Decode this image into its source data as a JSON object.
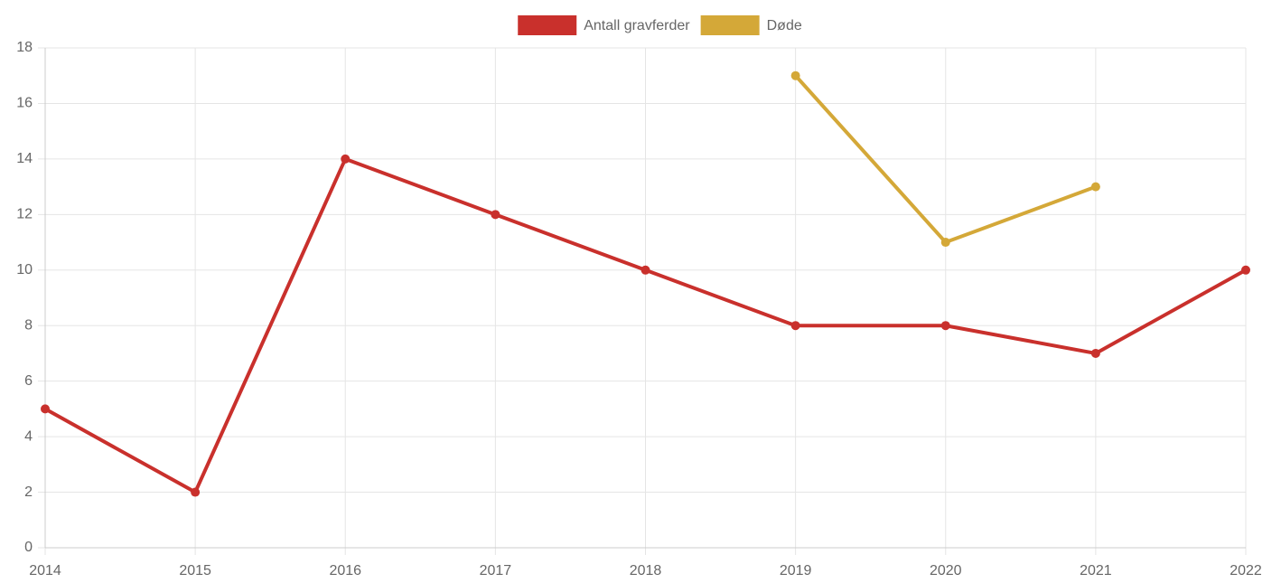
{
  "chart_data": {
    "type": "line",
    "categories": [
      "2014",
      "2015",
      "2016",
      "2017",
      "2018",
      "2019",
      "2020",
      "2021",
      "2022"
    ],
    "series": [
      {
        "name": "Antall gravferder",
        "color": "#c9302c",
        "values": [
          5,
          2,
          14,
          12,
          10,
          8,
          8,
          7,
          10
        ]
      },
      {
        "name": "Døde",
        "color": "#d4a838",
        "values": [
          null,
          null,
          null,
          null,
          null,
          17,
          11,
          13,
          null
        ]
      }
    ],
    "ylim": [
      0,
      18
    ],
    "yticks": [
      0,
      2,
      4,
      6,
      8,
      10,
      12,
      14,
      16,
      18
    ],
    "grid": true,
    "legend": "top"
  }
}
